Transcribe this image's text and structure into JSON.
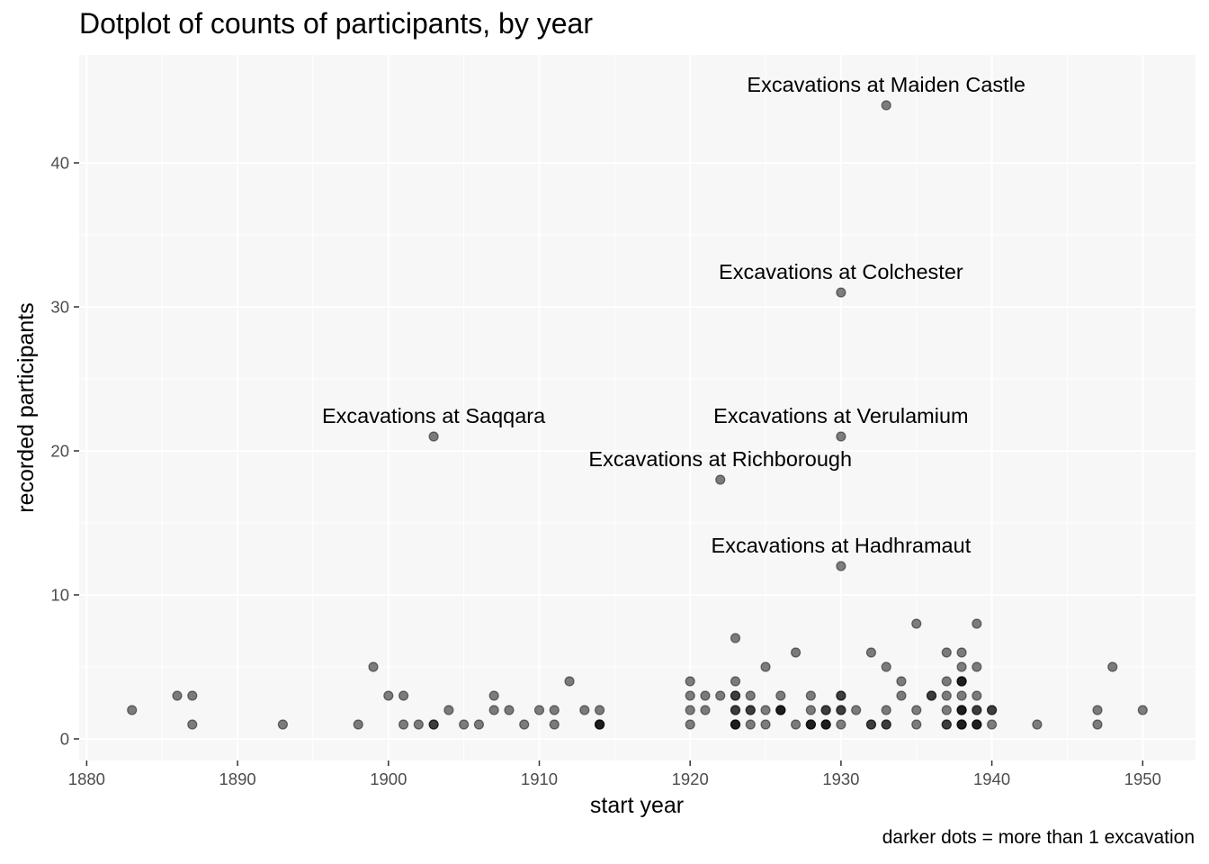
{
  "chart_data": {
    "type": "scatter",
    "title": "Dotplot of counts of participants, by year",
    "caption": "darker dots = more than 1 excavation",
    "xlabel": "start year",
    "ylabel": "recorded participants",
    "xlim": [
      1879.5,
      1953.5
    ],
    "ylim": [
      -1.5,
      47.5
    ],
    "xticks": [
      1880,
      1890,
      1900,
      1910,
      1920,
      1930,
      1940,
      1950
    ],
    "yticks": [
      0,
      10,
      20,
      30,
      40
    ],
    "grid": true,
    "points": [
      {
        "x": 1883,
        "y": 2,
        "n": 1
      },
      {
        "x": 1886,
        "y": 3,
        "n": 1
      },
      {
        "x": 1887,
        "y": 3,
        "n": 1
      },
      {
        "x": 1887,
        "y": 1,
        "n": 1
      },
      {
        "x": 1893,
        "y": 1,
        "n": 1
      },
      {
        "x": 1898,
        "y": 1,
        "n": 1
      },
      {
        "x": 1899,
        "y": 5,
        "n": 1
      },
      {
        "x": 1900,
        "y": 3,
        "n": 1
      },
      {
        "x": 1901,
        "y": 3,
        "n": 1
      },
      {
        "x": 1901,
        "y": 1,
        "n": 1
      },
      {
        "x": 1902,
        "y": 1,
        "n": 1
      },
      {
        "x": 1903,
        "y": 21,
        "n": 1
      },
      {
        "x": 1903,
        "y": 1,
        "n": 2
      },
      {
        "x": 1904,
        "y": 2,
        "n": 1
      },
      {
        "x": 1905,
        "y": 1,
        "n": 1
      },
      {
        "x": 1906,
        "y": 1,
        "n": 1
      },
      {
        "x": 1907,
        "y": 3,
        "n": 1
      },
      {
        "x": 1907,
        "y": 2,
        "n": 1
      },
      {
        "x": 1908,
        "y": 2,
        "n": 1
      },
      {
        "x": 1909,
        "y": 1,
        "n": 1
      },
      {
        "x": 1910,
        "y": 2,
        "n": 1
      },
      {
        "x": 1911,
        "y": 2,
        "n": 1
      },
      {
        "x": 1911,
        "y": 1,
        "n": 1
      },
      {
        "x": 1912,
        "y": 4,
        "n": 1
      },
      {
        "x": 1913,
        "y": 2,
        "n": 1
      },
      {
        "x": 1914,
        "y": 2,
        "n": 1
      },
      {
        "x": 1914,
        "y": 1,
        "n": 3
      },
      {
        "x": 1920,
        "y": 4,
        "n": 1
      },
      {
        "x": 1920,
        "y": 3,
        "n": 1
      },
      {
        "x": 1920,
        "y": 2,
        "n": 1
      },
      {
        "x": 1920,
        "y": 1,
        "n": 1
      },
      {
        "x": 1921,
        "y": 3,
        "n": 1
      },
      {
        "x": 1921,
        "y": 2,
        "n": 1
      },
      {
        "x": 1922,
        "y": 18,
        "n": 1
      },
      {
        "x": 1922,
        "y": 3,
        "n": 1
      },
      {
        "x": 1923,
        "y": 7,
        "n": 1
      },
      {
        "x": 1923,
        "y": 4,
        "n": 1
      },
      {
        "x": 1923,
        "y": 3,
        "n": 2
      },
      {
        "x": 1923,
        "y": 2,
        "n": 2
      },
      {
        "x": 1923,
        "y": 1,
        "n": 3
      },
      {
        "x": 1924,
        "y": 3,
        "n": 1
      },
      {
        "x": 1924,
        "y": 2,
        "n": 2
      },
      {
        "x": 1924,
        "y": 1,
        "n": 1
      },
      {
        "x": 1925,
        "y": 5,
        "n": 1
      },
      {
        "x": 1925,
        "y": 2,
        "n": 1
      },
      {
        "x": 1925,
        "y": 1,
        "n": 1
      },
      {
        "x": 1926,
        "y": 3,
        "n": 1
      },
      {
        "x": 1926,
        "y": 2,
        "n": 3
      },
      {
        "x": 1927,
        "y": 6,
        "n": 1
      },
      {
        "x": 1927,
        "y": 1,
        "n": 1
      },
      {
        "x": 1928,
        "y": 3,
        "n": 1
      },
      {
        "x": 1928,
        "y": 2,
        "n": 1
      },
      {
        "x": 1928,
        "y": 1,
        "n": 3
      },
      {
        "x": 1929,
        "y": 2,
        "n": 2
      },
      {
        "x": 1929,
        "y": 1,
        "n": 3
      },
      {
        "x": 1930,
        "y": 31,
        "n": 1
      },
      {
        "x": 1930,
        "y": 21,
        "n": 1
      },
      {
        "x": 1930,
        "y": 12,
        "n": 1
      },
      {
        "x": 1930,
        "y": 3,
        "n": 2
      },
      {
        "x": 1930,
        "y": 2,
        "n": 2
      },
      {
        "x": 1930,
        "y": 1,
        "n": 1
      },
      {
        "x": 1931,
        "y": 2,
        "n": 1
      },
      {
        "x": 1932,
        "y": 6,
        "n": 1
      },
      {
        "x": 1932,
        "y": 1,
        "n": 2
      },
      {
        "x": 1933,
        "y": 44,
        "n": 1
      },
      {
        "x": 1933,
        "y": 5,
        "n": 1
      },
      {
        "x": 1933,
        "y": 2,
        "n": 1
      },
      {
        "x": 1933,
        "y": 1,
        "n": 2
      },
      {
        "x": 1934,
        "y": 4,
        "n": 1
      },
      {
        "x": 1934,
        "y": 3,
        "n": 1
      },
      {
        "x": 1935,
        "y": 8,
        "n": 1
      },
      {
        "x": 1935,
        "y": 2,
        "n": 1
      },
      {
        "x": 1935,
        "y": 1,
        "n": 1
      },
      {
        "x": 1936,
        "y": 3,
        "n": 2
      },
      {
        "x": 1937,
        "y": 6,
        "n": 1
      },
      {
        "x": 1937,
        "y": 4,
        "n": 1
      },
      {
        "x": 1937,
        "y": 3,
        "n": 1
      },
      {
        "x": 1937,
        "y": 2,
        "n": 1
      },
      {
        "x": 1937,
        "y": 1,
        "n": 2
      },
      {
        "x": 1938,
        "y": 6,
        "n": 1
      },
      {
        "x": 1938,
        "y": 5,
        "n": 1
      },
      {
        "x": 1938,
        "y": 4,
        "n": 3
      },
      {
        "x": 1938,
        "y": 3,
        "n": 1
      },
      {
        "x": 1938,
        "y": 2,
        "n": 3
      },
      {
        "x": 1938,
        "y": 1,
        "n": 3
      },
      {
        "x": 1939,
        "y": 8,
        "n": 1
      },
      {
        "x": 1939,
        "y": 5,
        "n": 1
      },
      {
        "x": 1939,
        "y": 3,
        "n": 1
      },
      {
        "x": 1939,
        "y": 2,
        "n": 2
      },
      {
        "x": 1939,
        "y": 1,
        "n": 3
      },
      {
        "x": 1940,
        "y": 2,
        "n": 2
      },
      {
        "x": 1940,
        "y": 1,
        "n": 1
      },
      {
        "x": 1943,
        "y": 1,
        "n": 1
      },
      {
        "x": 1947,
        "y": 2,
        "n": 1
      },
      {
        "x": 1947,
        "y": 1,
        "n": 1
      },
      {
        "x": 1948,
        "y": 5,
        "n": 1
      },
      {
        "x": 1950,
        "y": 2,
        "n": 1
      }
    ],
    "annotations": [
      {
        "label": "Excavations at Maiden Castle",
        "x": 1933,
        "y": 44
      },
      {
        "label": "Excavations at Colchester",
        "x": 1930,
        "y": 31
      },
      {
        "label": "Excavations at Saqqara",
        "x": 1903,
        "y": 21
      },
      {
        "label": "Excavations at Verulamium",
        "x": 1930,
        "y": 21
      },
      {
        "label": "Excavations at Richborough",
        "x": 1922,
        "y": 18
      },
      {
        "label": "Excavations at Hadhramaut",
        "x": 1930,
        "y": 12
      }
    ],
    "colors": {
      "panel": "#f7f7f7",
      "grid": "#ffffff",
      "point": "#000000",
      "tick": "#4d4d4d"
    }
  }
}
